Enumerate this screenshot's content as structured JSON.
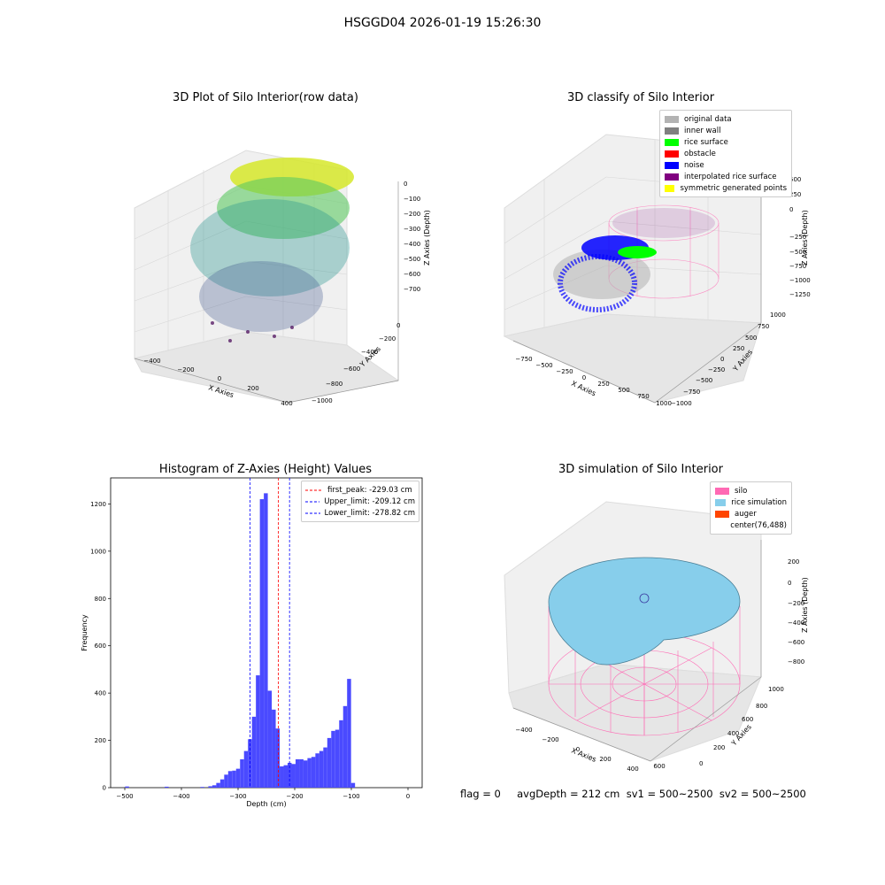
{
  "suptitle": "HSGGD04 2026-01-19 15:26:30",
  "plots": {
    "raw": {
      "title": "3D Plot of Silo Interior(row data)",
      "xlabel": "X Axies",
      "ylabel": "Y Axies",
      "zlabel": "Z Axies (Depth)",
      "xticks": [
        "−400",
        "−200",
        "0",
        "200",
        "400"
      ],
      "yticks": [
        "0",
        "−200",
        "−400",
        "−600",
        "−800",
        "−1000"
      ],
      "zticks": [
        "0",
        "−100",
        "−200",
        "−300",
        "−400",
        "−500",
        "−600",
        "−700"
      ]
    },
    "classify": {
      "title": "3D classify of Silo Interior",
      "xlabel": "X Axies",
      "ylabel": "Y Axies",
      "zlabel": "Z Axies (Depth)",
      "xticks": [
        "−750",
        "−500",
        "−250",
        "0",
        "250",
        "500",
        "750",
        "1000"
      ],
      "yticks": [
        "1000",
        "750",
        "500",
        "250",
        "0",
        "−250",
        "−500",
        "−750",
        "−1000"
      ],
      "zticks": [
        "500",
        "250",
        "0",
        "−250",
        "−500",
        "−750",
        "−1000",
        "−1250"
      ],
      "legend": [
        {
          "label": "original data",
          "color": "#b3b3b3"
        },
        {
          "label": "inner wall",
          "color": "#808080"
        },
        {
          "label": "rice surface",
          "color": "#00ff00"
        },
        {
          "label": "obstacle",
          "color": "#ff0000"
        },
        {
          "label": "noise",
          "color": "#0000ff"
        },
        {
          "label": "interpolated rice surface",
          "color": "#800080"
        },
        {
          "label": "symmetric generated points",
          "color": "#ffff00"
        }
      ]
    },
    "histogram": {
      "title": "Histogram of Z-Axies (Height) Values",
      "xlabel": "Depth (cm)",
      "ylabel": "Frequency",
      "xticks": [
        "−500",
        "−400",
        "−300",
        "−200",
        "−100",
        "0"
      ],
      "yticks": [
        "0",
        "200",
        "400",
        "600",
        "800",
        "1000",
        "1200"
      ],
      "legend": [
        {
          "label": "first_peak: -229.03 cm",
          "color": "#ff0000"
        },
        {
          "label": "Upper_limit: -209.12 cm",
          "color": "#0000ff"
        },
        {
          "label": "Lower_limit: -278.82 cm",
          "color": "#0000ff"
        }
      ]
    },
    "simulation": {
      "title": "3D simulation of Silo Interior",
      "xlabel": "X Axies",
      "ylabel": "Y Axies",
      "zlabel": "Z Axies (Depth)",
      "xticks": [
        "−400",
        "−200",
        "0",
        "200",
        "400",
        "600"
      ],
      "yticks": [
        "0",
        "200",
        "400",
        "600",
        "800",
        "1000"
      ],
      "zticks": [
        "200",
        "0",
        "−200",
        "−400",
        "−600",
        "−800"
      ],
      "legend": [
        {
          "label": "silo",
          "color": "#ff69b4"
        },
        {
          "label": "rice simulation",
          "color": "#87ceeb"
        },
        {
          "label": "auger",
          "color": "#ff4500"
        },
        {
          "label": "center(76,488)",
          "color": ""
        }
      ]
    }
  },
  "footer": "flag = 0     avgDepth = 212 cm  sv1 = 500~2500  sv2 = 500~2500",
  "chart_data": {
    "type": "bar",
    "title": "Histogram of Z-Axies (Height) Values",
    "xlabel": "Depth (cm)",
    "ylabel": "Frequency",
    "xlim": [
      -525,
      25
    ],
    "ylim": [
      0,
      1310
    ],
    "bin_width": 7,
    "bins": [
      {
        "x": -496,
        "y": 5
      },
      {
        "x": -426,
        "y": 4
      },
      {
        "x": -363,
        "y": 3
      },
      {
        "x": -349,
        "y": 6
      },
      {
        "x": -342,
        "y": 10
      },
      {
        "x": -335,
        "y": 20
      },
      {
        "x": -328,
        "y": 35
      },
      {
        "x": -321,
        "y": 55
      },
      {
        "x": -314,
        "y": 70
      },
      {
        "x": -307,
        "y": 72
      },
      {
        "x": -300,
        "y": 80
      },
      {
        "x": -293,
        "y": 120
      },
      {
        "x": -286,
        "y": 155
      },
      {
        "x": -279,
        "y": 205
      },
      {
        "x": -272,
        "y": 300
      },
      {
        "x": -265,
        "y": 475
      },
      {
        "x": -258,
        "y": 1220
      },
      {
        "x": -251,
        "y": 1245
      },
      {
        "x": -244,
        "y": 410
      },
      {
        "x": -237,
        "y": 330
      },
      {
        "x": -230,
        "y": 250
      },
      {
        "x": -223,
        "y": 90
      },
      {
        "x": -216,
        "y": 95
      },
      {
        "x": -209,
        "y": 105
      },
      {
        "x": -202,
        "y": 100
      },
      {
        "x": -195,
        "y": 120
      },
      {
        "x": -188,
        "y": 120
      },
      {
        "x": -181,
        "y": 115
      },
      {
        "x": -174,
        "y": 125
      },
      {
        "x": -167,
        "y": 130
      },
      {
        "x": -160,
        "y": 145
      },
      {
        "x": -153,
        "y": 155
      },
      {
        "x": -146,
        "y": 170
      },
      {
        "x": -139,
        "y": 210
      },
      {
        "x": -132,
        "y": 240
      },
      {
        "x": -125,
        "y": 245
      },
      {
        "x": -118,
        "y": 285
      },
      {
        "x": -111,
        "y": 345
      },
      {
        "x": -104,
        "y": 460
      },
      {
        "x": -97,
        "y": 20
      }
    ],
    "vlines": [
      {
        "label": "first_peak: -229.03 cm",
        "x": -229.03,
        "color": "#ff0000"
      },
      {
        "label": "Upper_limit: -209.12 cm",
        "x": -209.12,
        "color": "#0000ff"
      },
      {
        "label": "Lower_limit: -278.82 cm",
        "x": -278.82,
        "color": "#0000ff"
      }
    ]
  }
}
